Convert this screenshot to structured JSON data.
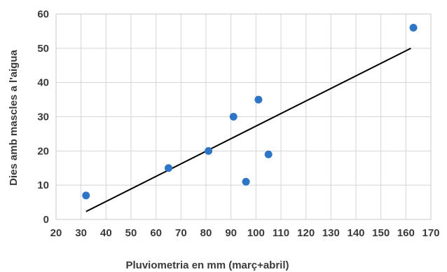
{
  "chart_data": {
    "type": "scatter",
    "title": "",
    "xlabel": "Pluviometria en mm (març+abril)",
    "ylabel": "Dies amb mascles a l'aigua",
    "xlim": [
      20,
      170
    ],
    "ylim": [
      0,
      60
    ],
    "xticks": [
      20,
      30,
      40,
      50,
      60,
      70,
      80,
      90,
      100,
      110,
      120,
      130,
      140,
      150,
      160,
      170
    ],
    "yticks": [
      0,
      10,
      20,
      30,
      40,
      50,
      60
    ],
    "grid": true,
    "legend": "none",
    "series": [
      {
        "color": "#2e75c8",
        "points": [
          {
            "x": 32,
            "y": 7
          },
          {
            "x": 65,
            "y": 15
          },
          {
            "x": 81,
            "y": 20
          },
          {
            "x": 91,
            "y": 30
          },
          {
            "x": 96,
            "y": 11
          },
          {
            "x": 101,
            "y": 35
          },
          {
            "x": 105,
            "y": 19
          },
          {
            "x": 163,
            "y": 56
          }
        ]
      }
    ],
    "trendline": {
      "type": "linear",
      "color": "#000000",
      "x": [
        32,
        162
      ],
      "y": [
        2.3,
        50
      ]
    }
  }
}
